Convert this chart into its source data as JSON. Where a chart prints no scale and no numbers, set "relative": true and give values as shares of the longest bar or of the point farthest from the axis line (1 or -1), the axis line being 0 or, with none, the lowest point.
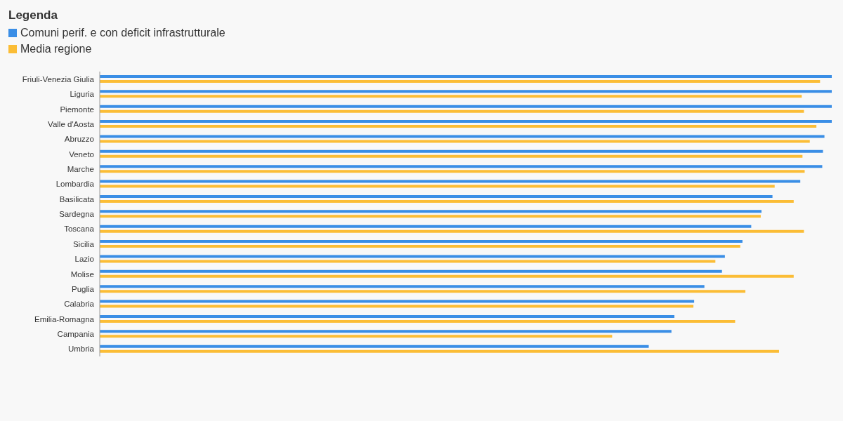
{
  "chart_data": {
    "type": "bar",
    "orientation": "horizontal",
    "relative": true,
    "legend_title": "Legenda",
    "legend": "top left",
    "grid": false,
    "categories": [
      "Friuli-Venezia Giulia",
      "Liguria",
      "Piemonte",
      "Valle d'Aosta",
      "Abruzzo",
      "Veneto",
      "Marche",
      "Lombardia",
      "Basilicata",
      "Sardegna",
      "Toscana",
      "Sicilia",
      "Lazio",
      "Molise",
      "Puglia",
      "Calabria",
      "Emilia-Romagna",
      "Campania",
      "Umbria"
    ],
    "series": [
      {
        "name": "Comuni perif. e con deficit infrastrutturale",
        "color": "#3a8ee6",
        "values": [
          1,
          1,
          1,
          1,
          0.99,
          0.988,
          0.987,
          0.957,
          0.919,
          0.904,
          0.89,
          0.878,
          0.854,
          0.85,
          0.826,
          0.812,
          0.785,
          0.781,
          0.75
        ]
      },
      {
        "name": "Media regione",
        "color": "#fbbd36",
        "values": [
          0.984,
          0.959,
          0.962,
          0.979,
          0.97,
          0.96,
          0.963,
          0.922,
          0.948,
          0.903,
          0.962,
          0.875,
          0.841,
          0.948,
          0.882,
          0.811,
          0.868,
          0.7,
          0.928
        ]
      }
    ]
  }
}
